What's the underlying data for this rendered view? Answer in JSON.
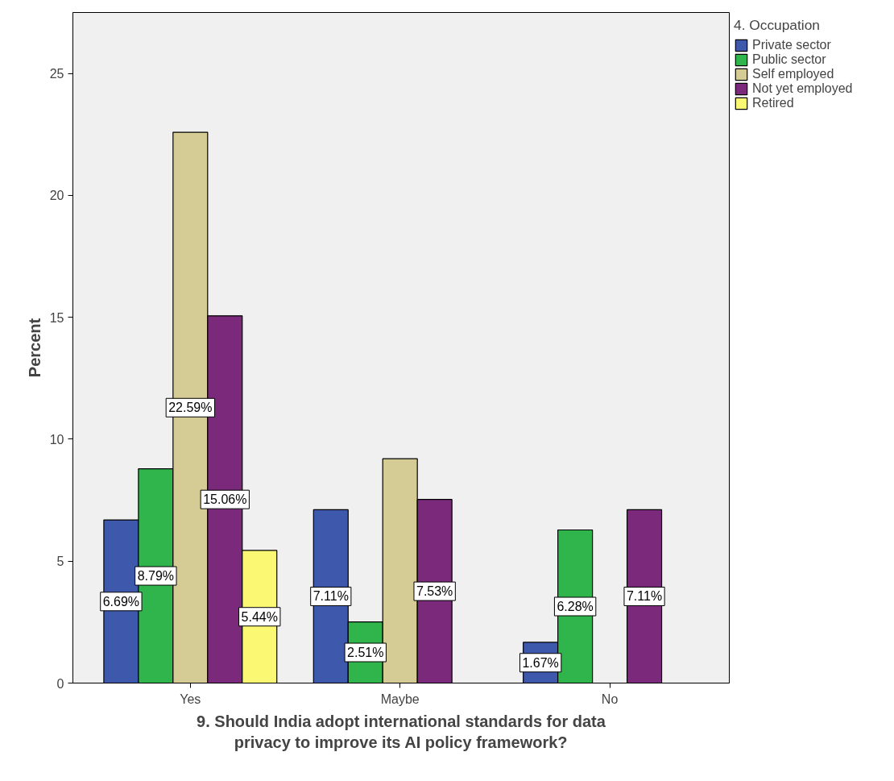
{
  "chart_data": {
    "type": "bar",
    "xlabel": "9. Should India adopt international standards for data privacy to improve its AI policy framework?",
    "ylabel": "Percent",
    "legend_title": "4. Occupation",
    "categories": [
      "Yes",
      "Maybe",
      "No"
    ],
    "series": [
      {
        "name": "Private sector",
        "color": "#3e58ac",
        "values": [
          6.69,
          7.11,
          1.67
        ],
        "value_labels": [
          "6.69%",
          "7.11%",
          "1.67%"
        ]
      },
      {
        "name": "Public sector",
        "color": "#2fb54b",
        "values": [
          8.79,
          2.51,
          6.28
        ],
        "value_labels": [
          "8.79%",
          "2.51%",
          "6.28%"
        ]
      },
      {
        "name": "Self employed",
        "color": "#d4cc94",
        "values": [
          22.59,
          9.2,
          null
        ],
        "value_labels": [
          "22.59%",
          null,
          null
        ]
      },
      {
        "name": "Not yet employed",
        "color": "#7b2a7b",
        "values": [
          15.06,
          7.53,
          7.11
        ],
        "value_labels": [
          "15.06%",
          "7.53%",
          "7.11%"
        ]
      },
      {
        "name": "Retired",
        "color": "#fbf873",
        "values": [
          5.44,
          null,
          null
        ],
        "value_labels": [
          "5.44%",
          null,
          null
        ]
      }
    ],
    "ylim": [
      0,
      27.5
    ],
    "yticks": [
      0,
      5,
      10,
      15,
      20,
      25
    ],
    "grid": false,
    "legend": "right"
  }
}
